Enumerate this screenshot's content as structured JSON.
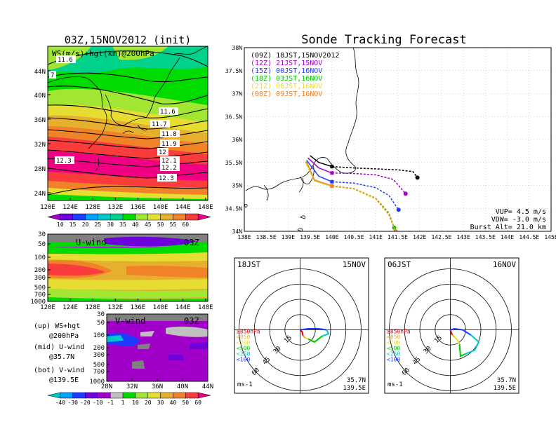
{
  "left_title": "03Z,15NOV2012 (init)",
  "right_title": "Sonde Tracking Forecast",
  "map_panel": {
    "label": "WS(m/s)+hgt(km)@200hPa",
    "lat_ticks": [
      "44N",
      "40N",
      "36N",
      "32N",
      "28N",
      "24N"
    ],
    "lon_ticks": [
      "120E",
      "124E",
      "128E",
      "132E",
      "136E",
      "140E",
      "144E",
      "148E"
    ],
    "contours": [
      "11.6",
      "7",
      "11.6",
      "11.7",
      "11.8",
      "11.9",
      "12",
      "12.1",
      "12.2",
      "12.3",
      "12.3"
    ],
    "colorbar_ticks": [
      "10",
      "15",
      "20",
      "25",
      "30",
      "35",
      "40",
      "45",
      "50",
      "55",
      "60"
    ],
    "colorbar_colors": [
      "#a000c8",
      "#6e00dc",
      "#1e3cff",
      "#00a0ff",
      "#00c8c8",
      "#00d28c",
      "#00dc00",
      "#a0e632",
      "#e6dc32",
      "#e6af2d",
      "#f08228",
      "#fa3c3c",
      "#f00082"
    ]
  },
  "u_panel": {
    "label": "U-wind",
    "time": "03Z",
    "p_ticks": [
      "30",
      "50",
      "100",
      "200",
      "300",
      "500",
      "700",
      "1000"
    ],
    "lon_ticks": [
      "120E",
      "124E",
      "128E",
      "132E",
      "136E",
      "140E",
      "144E",
      "148E"
    ]
  },
  "v_panel": {
    "label": "V-wind",
    "time": "03Z",
    "p_ticks": [
      "30",
      "50",
      "100",
      "200",
      "300",
      "500",
      "700",
      "1000"
    ],
    "lat_ticks": [
      "28N",
      "32N",
      "36N",
      "40N",
      "44N"
    ],
    "colorbar_ticks": [
      "-40",
      "-30",
      "-20",
      "-10",
      "-1",
      "1",
      "10",
      "20",
      "30",
      "40",
      "50",
      "60"
    ],
    "colorbar_colors": [
      "#00c8c8",
      "#00a0ff",
      "#1e3cff",
      "#6e00dc",
      "#a000c8",
      "#c0c0c0",
      "#00dc00",
      "#a0e632",
      "#e6dc32",
      "#e6af2d",
      "#f08228",
      "#fa3c3c",
      "#f00082"
    ]
  },
  "legend_notes": [
    {
      "line1": "(up) WS+hgt",
      "line2": "@200hPa"
    },
    {
      "line1": "(mid) U-wind",
      "line2": "@35.7N"
    },
    {
      "line1": "(bot) V-wind",
      "line2": "@139.5E"
    }
  ],
  "track_panel": {
    "lat_ticks": [
      "38N",
      "37.5N",
      "37N",
      "36.5N",
      "36N",
      "35.5N",
      "35N",
      "34.5N",
      "34N"
    ],
    "lon_ticks": [
      "138E",
      "138.5E",
      "139E",
      "139.5E",
      "140E",
      "140.5E",
      "141E",
      "141.5E",
      "142E",
      "142.5E",
      "143E",
      "143.5E",
      "144E",
      "144.5E",
      "145E"
    ],
    "info": [
      "VUP= 4.5 m/s",
      "VDW= -3.0 m/s",
      "Burst Alt= 21.0 km"
    ]
  },
  "chart_data": {
    "type": "scatter",
    "title": "Sonde Tracking Forecast",
    "xlim": [
      138,
      145
    ],
    "ylim": [
      34,
      38
    ],
    "series": [
      {
        "name": "(09Z) 18JST,15NOV2012",
        "color": "#000000",
        "launch": [
          139.5,
          35.65
        ],
        "x": [
          139.5,
          139.7,
          140.0,
          140.5,
          141.0,
          141.5,
          141.85,
          141.95
        ],
        "y": [
          35.65,
          35.5,
          35.41,
          35.38,
          35.36,
          35.34,
          35.3,
          35.17
        ]
      },
      {
        "name": "(12Z) 21JST,15NOV",
        "color": "#a000c8",
        "launch": [
          139.45,
          35.6
        ],
        "x": [
          139.45,
          139.7,
          140.0,
          140.5,
          141.0,
          141.4,
          141.68
        ],
        "y": [
          35.6,
          35.38,
          35.27,
          35.26,
          35.23,
          35.13,
          34.82
        ]
      },
      {
        "name": "(15Z) 00JST,16NOV",
        "color": "#1e3cff",
        "launch": [
          139.42,
          35.55
        ],
        "x": [
          139.42,
          139.7,
          140.0,
          140.5,
          141.0,
          141.3,
          141.52
        ],
        "y": [
          35.55,
          35.2,
          35.08,
          35.05,
          34.95,
          34.78,
          34.47
        ]
      },
      {
        "name": "(18Z) 03JST,16NOV",
        "color": "#00c800",
        "launch": [
          139.4,
          35.52
        ],
        "x": [
          139.4,
          139.6,
          140.0,
          140.5,
          141.0,
          141.3,
          141.42
        ],
        "y": [
          35.52,
          35.1,
          34.98,
          34.93,
          34.72,
          34.4,
          34.08
        ]
      },
      {
        "name": "(21Z) 06JST,16NOV",
        "color": "#e6dc32",
        "launch": [
          139.4,
          35.5
        ],
        "x": [
          139.4,
          139.6,
          140.0,
          140.5,
          141.0,
          141.3,
          141.45
        ],
        "y": [
          35.5,
          35.1,
          34.98,
          34.92,
          34.7,
          34.35,
          33.98
        ]
      },
      {
        "name": "(00Z) 09JST,16NOV",
        "color": "#f08228",
        "launch": [
          139.42,
          35.52
        ],
        "x": [
          139.42,
          139.6,
          140.0,
          140.5,
          141.0,
          141.3,
          141.45
        ],
        "y": [
          35.52,
          35.12,
          34.99,
          34.93,
          34.72,
          34.37,
          34.0
        ]
      }
    ]
  },
  "hodographs": [
    {
      "time_label": "18JST",
      "date_label": "15NOV",
      "ring_labels": [
        "15",
        "30",
        "45",
        "60"
      ],
      "levels": [
        {
          "name": "≥850hPa",
          "color": "#e60000"
        },
        {
          "name": "<850",
          "color": "#e6af2d"
        },
        {
          "name": "<700",
          "color": "#e6dc32"
        },
        {
          "name": "<500",
          "color": "#00c800"
        },
        {
          "name": "<250",
          "color": "#00c8c8"
        },
        {
          "name": "<100",
          "color": "#1e3cff"
        }
      ],
      "segments": [
        {
          "color": "#e60000",
          "u": [
            0,
            2,
            3
          ],
          "v": [
            0,
            -2,
            -6
          ]
        },
        {
          "color": "#e6af2d",
          "u": [
            3,
            5
          ],
          "v": [
            -6,
            -8
          ]
        },
        {
          "color": "#e6dc32",
          "u": [
            5,
            8
          ],
          "v": [
            -8,
            -9
          ]
        },
        {
          "color": "#00c800",
          "u": [
            8,
            14,
            22
          ],
          "v": [
            -9,
            -12,
            -6
          ]
        },
        {
          "color": "#00c8c8",
          "u": [
            22,
            28,
            26
          ],
          "v": [
            -6,
            -4,
            0
          ]
        },
        {
          "color": "#1e3cff",
          "u": [
            26,
            18,
            8,
            0
          ],
          "v": [
            0,
            1,
            1,
            0
          ]
        }
      ],
      "location": [
        "35.7N",
        "139.5E"
      ],
      "unit": "ms-1"
    },
    {
      "time_label": "06JST",
      "date_label": "16NOV",
      "ring_labels": [
        "15",
        "30",
        "45",
        "60"
      ],
      "levels": [
        {
          "name": "≥850hPa",
          "color": "#e60000"
        },
        {
          "name": "<850",
          "color": "#e6af2d"
        },
        {
          "name": "<700",
          "color": "#e6dc32"
        },
        {
          "name": "<500",
          "color": "#00c800"
        },
        {
          "name": "<250",
          "color": "#00c8c8"
        },
        {
          "name": "<100",
          "color": "#1e3cff"
        }
      ],
      "segments": [
        {
          "color": "#e60000",
          "u": [
            0,
            1,
            2
          ],
          "v": [
            0,
            -3,
            -5
          ]
        },
        {
          "color": "#e6af2d",
          "u": [
            2,
            4
          ],
          "v": [
            -5,
            -7
          ]
        },
        {
          "color": "#e6dc32",
          "u": [
            4,
            7,
            9
          ],
          "v": [
            -7,
            -10,
            -14
          ]
        },
        {
          "color": "#00c800",
          "u": [
            9,
            10,
            14
          ],
          "v": [
            -14,
            -26,
            -24
          ]
        },
        {
          "color": "#00c8c8",
          "u": [
            14,
            24,
            28,
            20
          ],
          "v": [
            -24,
            -20,
            -12,
            -5
          ]
        },
        {
          "color": "#1e3cff",
          "u": [
            20,
            12,
            4,
            0
          ],
          "v": [
            -5,
            0,
            1,
            0
          ]
        }
      ],
      "location": [
        "35.7N",
        "139.5E"
      ],
      "unit": "ms-1"
    }
  ]
}
